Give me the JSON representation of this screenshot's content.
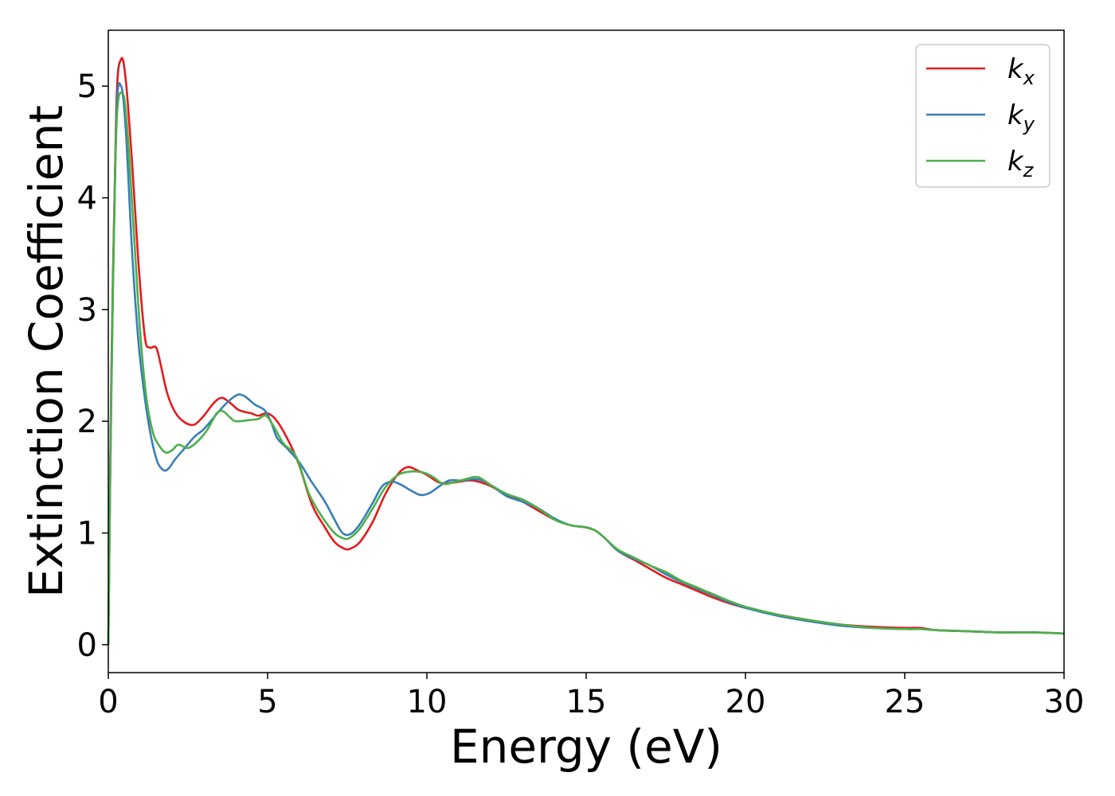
{
  "chart_data": {
    "type": "line",
    "title": "",
    "xlabel": "Energy (eV)",
    "ylabel": "Extinction Coefficient",
    "xlim": [
      0,
      30
    ],
    "ylim": [
      -0.25,
      5.5
    ],
    "xticks": [
      0,
      5,
      10,
      15,
      20,
      25,
      30
    ],
    "yticks": [
      0,
      1,
      2,
      3,
      4,
      5
    ],
    "grid": false,
    "legend_position": "top-right",
    "series": [
      {
        "name": "k",
        "subscript": "x",
        "color": "#e41a1c",
        "points": [
          [
            0,
            0
          ],
          [
            0.1,
            2.5
          ],
          [
            0.25,
            4.8
          ],
          [
            0.4,
            5.24
          ],
          [
            0.55,
            5.05
          ],
          [
            0.75,
            4.3
          ],
          [
            0.95,
            3.4
          ],
          [
            1.15,
            2.75
          ],
          [
            1.3,
            2.66
          ],
          [
            1.5,
            2.66
          ],
          [
            1.65,
            2.5
          ],
          [
            1.85,
            2.25
          ],
          [
            2.1,
            2.08
          ],
          [
            2.4,
            1.99
          ],
          [
            2.7,
            1.97
          ],
          [
            3.0,
            2.05
          ],
          [
            3.3,
            2.16
          ],
          [
            3.55,
            2.21
          ],
          [
            3.8,
            2.17
          ],
          [
            4.1,
            2.1
          ],
          [
            4.5,
            2.07
          ],
          [
            4.7,
            2.05
          ],
          [
            5.0,
            2.07
          ],
          [
            5.3,
            2.0
          ],
          [
            5.7,
            1.8
          ],
          [
            6.0,
            1.6
          ],
          [
            6.4,
            1.25
          ],
          [
            6.8,
            1.05
          ],
          [
            7.1,
            0.92
          ],
          [
            7.4,
            0.86
          ],
          [
            7.6,
            0.86
          ],
          [
            7.9,
            0.92
          ],
          [
            8.3,
            1.1
          ],
          [
            8.7,
            1.35
          ],
          [
            9.1,
            1.53
          ],
          [
            9.4,
            1.59
          ],
          [
            9.7,
            1.56
          ],
          [
            10.0,
            1.52
          ],
          [
            10.4,
            1.45
          ],
          [
            10.8,
            1.45
          ],
          [
            11.3,
            1.47
          ],
          [
            11.6,
            1.46
          ],
          [
            12.0,
            1.42
          ],
          [
            12.5,
            1.34
          ],
          [
            13.0,
            1.28
          ],
          [
            13.5,
            1.2
          ],
          [
            14.0,
            1.12
          ],
          [
            14.5,
            1.07
          ],
          [
            15.0,
            1.05
          ],
          [
            15.3,
            1.02
          ],
          [
            15.6,
            0.95
          ],
          [
            16.0,
            0.84
          ],
          [
            16.5,
            0.76
          ],
          [
            17.0,
            0.68
          ],
          [
            17.5,
            0.6
          ],
          [
            18.0,
            0.54
          ],
          [
            18.5,
            0.48
          ],
          [
            19.0,
            0.42
          ],
          [
            19.5,
            0.37
          ],
          [
            20.0,
            0.33
          ],
          [
            21.0,
            0.27
          ],
          [
            22.0,
            0.22
          ],
          [
            23.0,
            0.18
          ],
          [
            24.0,
            0.16
          ],
          [
            25.0,
            0.15
          ],
          [
            25.5,
            0.15
          ],
          [
            26.0,
            0.13
          ],
          [
            27.0,
            0.12
          ],
          [
            28.0,
            0.11
          ],
          [
            29.0,
            0.11
          ],
          [
            30.0,
            0.1
          ]
        ]
      },
      {
        "name": "k",
        "subscript": "y",
        "color": "#377eb8",
        "points": [
          [
            0,
            0
          ],
          [
            0.1,
            2.4
          ],
          [
            0.25,
            4.7
          ],
          [
            0.4,
            5.0
          ],
          [
            0.55,
            4.6
          ],
          [
            0.75,
            3.5
          ],
          [
            0.95,
            2.7
          ],
          [
            1.15,
            2.2
          ],
          [
            1.35,
            1.85
          ],
          [
            1.55,
            1.63
          ],
          [
            1.75,
            1.56
          ],
          [
            1.9,
            1.58
          ],
          [
            2.1,
            1.66
          ],
          [
            2.4,
            1.76
          ],
          [
            2.7,
            1.86
          ],
          [
            3.0,
            1.93
          ],
          [
            3.3,
            2.03
          ],
          [
            3.6,
            2.13
          ],
          [
            3.9,
            2.21
          ],
          [
            4.1,
            2.24
          ],
          [
            4.3,
            2.22
          ],
          [
            4.6,
            2.15
          ],
          [
            4.9,
            2.1
          ],
          [
            5.1,
            2.0
          ],
          [
            5.3,
            1.85
          ],
          [
            5.6,
            1.76
          ],
          [
            6.0,
            1.63
          ],
          [
            6.4,
            1.45
          ],
          [
            6.8,
            1.28
          ],
          [
            7.1,
            1.12
          ],
          [
            7.35,
            1.0
          ],
          [
            7.6,
            0.99
          ],
          [
            7.9,
            1.08
          ],
          [
            8.3,
            1.27
          ],
          [
            8.6,
            1.42
          ],
          [
            8.9,
            1.46
          ],
          [
            9.2,
            1.43
          ],
          [
            9.5,
            1.38
          ],
          [
            9.8,
            1.34
          ],
          [
            10.1,
            1.36
          ],
          [
            10.4,
            1.42
          ],
          [
            10.7,
            1.47
          ],
          [
            11.1,
            1.47
          ],
          [
            11.6,
            1.48
          ],
          [
            12.0,
            1.43
          ],
          [
            12.5,
            1.33
          ],
          [
            13.0,
            1.28
          ],
          [
            13.5,
            1.22
          ],
          [
            14.0,
            1.13
          ],
          [
            14.5,
            1.07
          ],
          [
            15.0,
            1.05
          ],
          [
            15.3,
            1.02
          ],
          [
            15.6,
            0.95
          ],
          [
            16.0,
            0.84
          ],
          [
            16.5,
            0.77
          ],
          [
            17.0,
            0.71
          ],
          [
            17.5,
            0.63
          ],
          [
            18.0,
            0.56
          ],
          [
            18.5,
            0.5
          ],
          [
            19.0,
            0.44
          ],
          [
            19.5,
            0.38
          ],
          [
            20.0,
            0.33
          ],
          [
            21.0,
            0.26
          ],
          [
            22.0,
            0.21
          ],
          [
            23.0,
            0.17
          ],
          [
            24.0,
            0.15
          ],
          [
            25.0,
            0.14
          ],
          [
            25.5,
            0.14
          ],
          [
            26.0,
            0.13
          ],
          [
            27.0,
            0.12
          ],
          [
            28.0,
            0.11
          ],
          [
            29.0,
            0.11
          ],
          [
            30.0,
            0.1
          ]
        ]
      },
      {
        "name": "k",
        "subscript": "z",
        "color": "#4daf4a",
        "points": [
          [
            0,
            0
          ],
          [
            0.1,
            2.3
          ],
          [
            0.25,
            4.6
          ],
          [
            0.45,
            4.93
          ],
          [
            0.6,
            4.6
          ],
          [
            0.8,
            3.7
          ],
          [
            1.0,
            2.8
          ],
          [
            1.2,
            2.2
          ],
          [
            1.4,
            1.9
          ],
          [
            1.6,
            1.78
          ],
          [
            1.8,
            1.72
          ],
          [
            2.0,
            1.74
          ],
          [
            2.2,
            1.79
          ],
          [
            2.5,
            1.76
          ],
          [
            2.8,
            1.82
          ],
          [
            3.1,
            1.92
          ],
          [
            3.4,
            2.07
          ],
          [
            3.6,
            2.09
          ],
          [
            3.8,
            2.04
          ],
          [
            4.0,
            2.0
          ],
          [
            4.4,
            2.01
          ],
          [
            4.7,
            2.02
          ],
          [
            4.95,
            2.05
          ],
          [
            5.2,
            1.95
          ],
          [
            5.5,
            1.8
          ],
          [
            5.9,
            1.68
          ],
          [
            6.3,
            1.35
          ],
          [
            6.7,
            1.15
          ],
          [
            7.1,
            1.0
          ],
          [
            7.4,
            0.95
          ],
          [
            7.6,
            0.96
          ],
          [
            7.9,
            1.04
          ],
          [
            8.3,
            1.22
          ],
          [
            8.7,
            1.41
          ],
          [
            9.1,
            1.52
          ],
          [
            9.5,
            1.55
          ],
          [
            9.9,
            1.54
          ],
          [
            10.2,
            1.5
          ],
          [
            10.5,
            1.44
          ],
          [
            10.8,
            1.45
          ],
          [
            11.2,
            1.48
          ],
          [
            11.6,
            1.5
          ],
          [
            12.0,
            1.43
          ],
          [
            12.5,
            1.35
          ],
          [
            13.0,
            1.3
          ],
          [
            13.5,
            1.22
          ],
          [
            14.0,
            1.12
          ],
          [
            14.5,
            1.07
          ],
          [
            15.0,
            1.05
          ],
          [
            15.3,
            1.02
          ],
          [
            15.6,
            0.95
          ],
          [
            16.0,
            0.85
          ],
          [
            16.5,
            0.78
          ],
          [
            17.0,
            0.71
          ],
          [
            17.5,
            0.65
          ],
          [
            18.0,
            0.57
          ],
          [
            18.5,
            0.51
          ],
          [
            19.0,
            0.45
          ],
          [
            19.5,
            0.39
          ],
          [
            20.0,
            0.34
          ],
          [
            21.0,
            0.27
          ],
          [
            22.0,
            0.22
          ],
          [
            23.0,
            0.18
          ],
          [
            24.0,
            0.15
          ],
          [
            25.0,
            0.14
          ],
          [
            25.5,
            0.14
          ],
          [
            26.0,
            0.13
          ],
          [
            27.0,
            0.12
          ],
          [
            28.0,
            0.11
          ],
          [
            29.0,
            0.11
          ],
          [
            30.0,
            0.1
          ]
        ]
      }
    ]
  }
}
